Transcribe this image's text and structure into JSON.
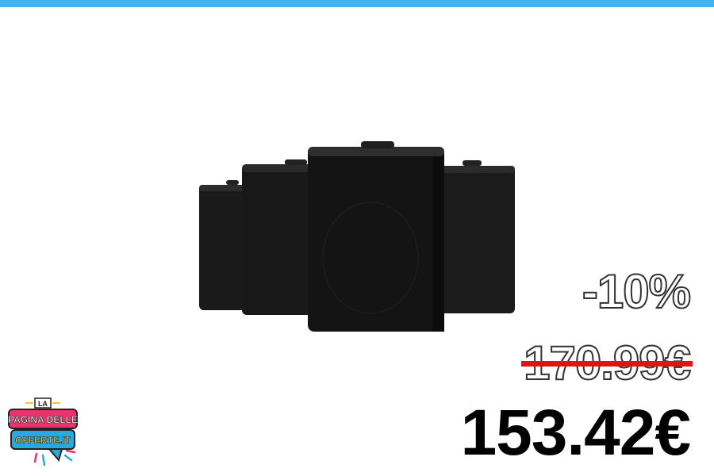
{
  "colors": {
    "top_bar": "#3fb6f2",
    "strike_line": "#e21313",
    "logo_pink": "#e8336d",
    "logo_blue": "#27a9e1",
    "logo_yellow": "#f7c534"
  },
  "product": {
    "image": "black-wall-speakers-4-pack"
  },
  "pricing": {
    "discount": "-10%",
    "old_price": "170.99€",
    "new_price": "153.42€"
  },
  "logo": {
    "line1": "LA",
    "line2": "PAGINA DELLE",
    "line3": "OFFERTE.IT"
  }
}
